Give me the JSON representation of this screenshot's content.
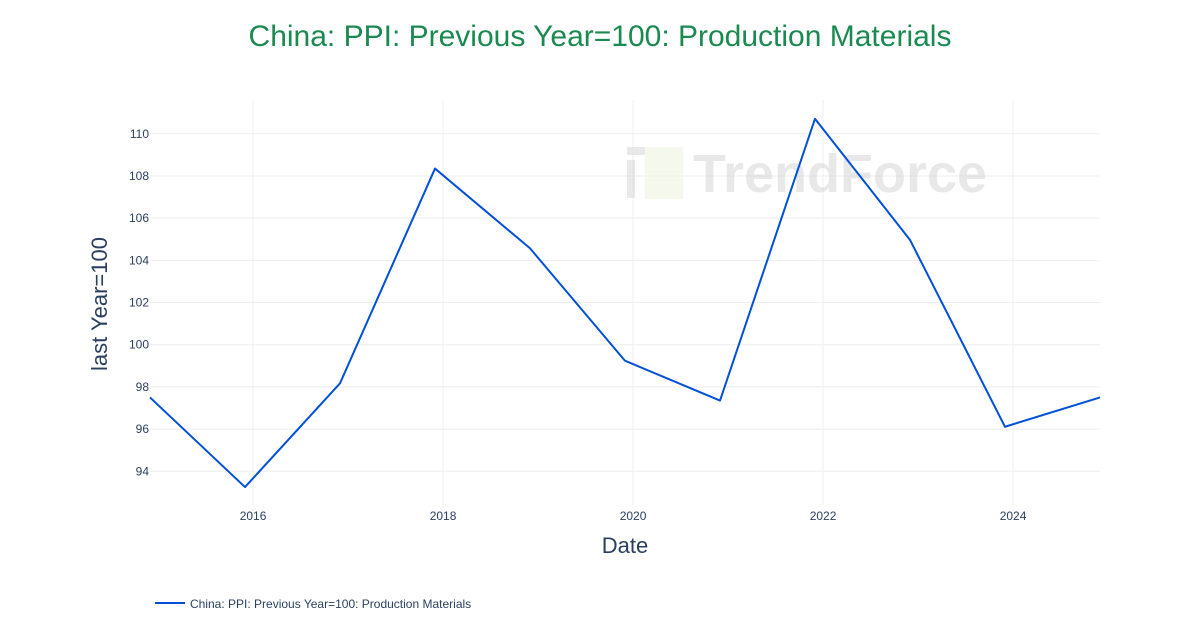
{
  "chart_data": {
    "type": "line",
    "title": "China: PPI: Previous Year=100: Production Materials",
    "xlabel": "Date",
    "ylabel": "last Year=100",
    "x": [
      "2014-12-01",
      "2015-12-01",
      "2016-12-01",
      "2017-12-01",
      "2018-12-01",
      "2019-12-01",
      "2020-12-01",
      "2021-12-01",
      "2022-12-01",
      "2023-12-01",
      "2024-12-01"
    ],
    "series": [
      {
        "name": "China: PPI: Previous Year=100: Production Materials",
        "values": [
          97.5,
          93.25,
          98.17,
          108.35,
          104.57,
          99.24,
          97.35,
          110.71,
          104.97,
          96.11,
          97.5
        ],
        "color": "#0050d8"
      }
    ],
    "xticks": [
      "2016",
      "2018",
      "2020",
      "2022",
      "2024"
    ],
    "yticks": [
      94,
      96,
      98,
      100,
      102,
      104,
      106,
      108,
      110
    ],
    "ylim": [
      92.4,
      111.6
    ],
    "grid": true,
    "legend": "bottom-left"
  },
  "watermark": "TrendForce",
  "colors": {
    "title": "#1a8a50",
    "line": "#0050d8"
  }
}
